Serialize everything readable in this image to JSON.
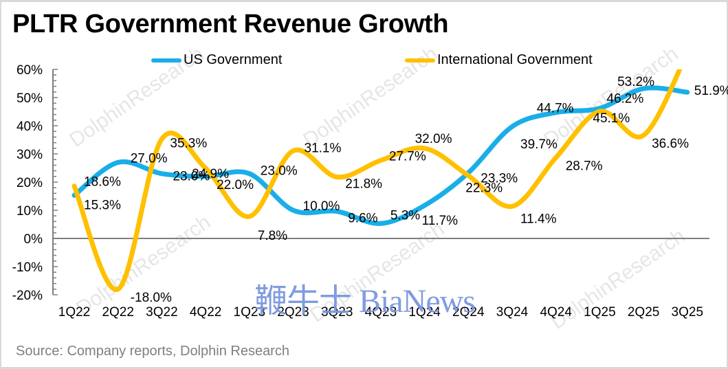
{
  "title": "PLTR Government Revenue Growth",
  "source": "Source: Company reports, Dolphin Research",
  "watermark": {
    "text": "DolphinResearch",
    "brand": "鞭牛士 BiaNews",
    "brand_color": "#7a97df"
  },
  "chart_data": {
    "type": "line",
    "title": "PLTR Government Revenue Growth",
    "xlabel": "",
    "ylabel": "",
    "categories": [
      "1Q22",
      "2Q22",
      "3Q22",
      "4Q22",
      "1Q23",
      "2Q23",
      "3Q23",
      "4Q23",
      "1Q24",
      "2Q24",
      "3Q24",
      "4Q24",
      "1Q25",
      "2Q25",
      "3Q25"
    ],
    "ylim": [
      -0.2,
      0.6
    ],
    "yticks": [
      -0.2,
      -0.1,
      0.0,
      0.1,
      0.2,
      0.3,
      0.4,
      0.5,
      0.6
    ],
    "ytick_labels": [
      "-20%",
      "-10%",
      "0%",
      "10%",
      "20%",
      "30%",
      "40%",
      "50%",
      "60%"
    ],
    "minor_tick_step": 0.02,
    "grid": false,
    "smooth": true,
    "legend": "top",
    "series": [
      {
        "name": "US Government",
        "color": "#1aaee8",
        "values": [
          0.153,
          0.27,
          0.23,
          0.22,
          0.23,
          0.1,
          0.096,
          0.053,
          0.117,
          0.233,
          0.397,
          0.447,
          0.462,
          0.532,
          0.519
        ],
        "labels": [
          "15.3%",
          "27.0%",
          "23.0%",
          "22.0%",
          "23.0%",
          "10.0%",
          "9.6%",
          "5.3%",
          "11.7%",
          "23.3%",
          "39.7%",
          "44.7%",
          "46.2%",
          "53.2%",
          "51.9%"
        ]
      },
      {
        "name": "International Government",
        "color": "#ffc000",
        "values": [
          0.186,
          -0.18,
          0.353,
          0.249,
          0.078,
          0.311,
          0.218,
          0.277,
          0.32,
          0.223,
          0.114,
          0.287,
          0.451,
          0.366,
          0.66
        ],
        "labels": [
          "18.6%",
          "-18.0%",
          "35.3%",
          "24.9%",
          "7.8%",
          "31.1%",
          "21.8%",
          "27.7%",
          "32.0%",
          "22.3%",
          "11.4%",
          "28.7%",
          "45.1%",
          "36.6%",
          ""
        ],
        "note": "3Q25 value exceeds the 60% axis maximum; line is clipped and no label is shown"
      }
    ]
  }
}
